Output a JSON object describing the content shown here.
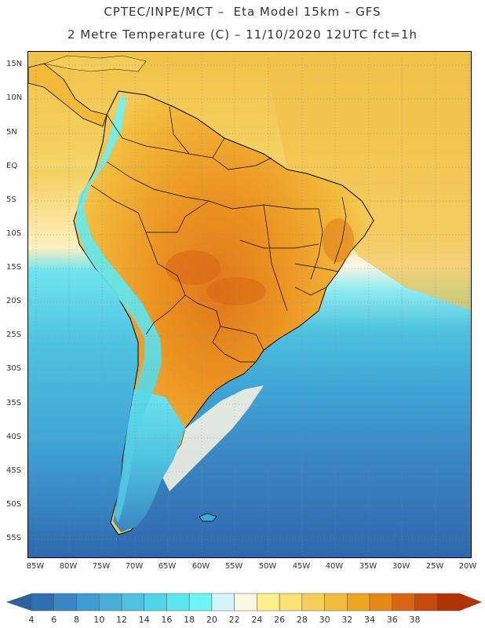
{
  "title": {
    "line1": "CPTEC/INPE/MCT –  Eta Model 15km – GFS",
    "line2": "2 Metre Temperature (C) – 11/10/2020 12UTC fct=1h"
  },
  "axes": {
    "lat_labels": [
      "15N",
      "10N",
      "5N",
      "EQ",
      "5S",
      "10S",
      "15S",
      "20S",
      "25S",
      "30S",
      "35S",
      "40S",
      "45S",
      "50S",
      "55S"
    ],
    "lon_labels": [
      "85W",
      "80W",
      "75W",
      "70W",
      "65W",
      "60W",
      "55W",
      "50W",
      "45W",
      "40W",
      "35W",
      "30W",
      "25W",
      "20W"
    ]
  },
  "colorbar": {
    "labels": [
      "4",
      "6",
      "8",
      "10",
      "12",
      "14",
      "16",
      "18",
      "20",
      "22",
      "24",
      "26",
      "28",
      "30",
      "32",
      "34",
      "36",
      "38"
    ],
    "colors": [
      "#2c6fb0",
      "#3a86c2",
      "#3f9bd0",
      "#47aed8",
      "#4ec2e0",
      "#52d4e8",
      "#5ce6ef",
      "#6ff4f7",
      "#d4f6fb",
      "#fdf6e3",
      "#fdf08a",
      "#f9e173",
      "#f4cf5c",
      "#f1bc3d",
      "#eea520",
      "#e68a1a",
      "#d96614",
      "#c64a0c",
      "#b03306"
    ],
    "under_color": "#2c5f9e",
    "over_color": "#b03306"
  },
  "legend_colors": {
    "ocean_south_deep": "#2f67ad",
    "ocean_mid": "#3fa6d6",
    "ocean_cool": "#55d3e6",
    "ocean_warm": "#f4cf5c",
    "land_hot": "#ec9422",
    "land_warm": "#f2b93a",
    "andes_cold": "#5bd8ea",
    "land_border": "#000000"
  }
}
